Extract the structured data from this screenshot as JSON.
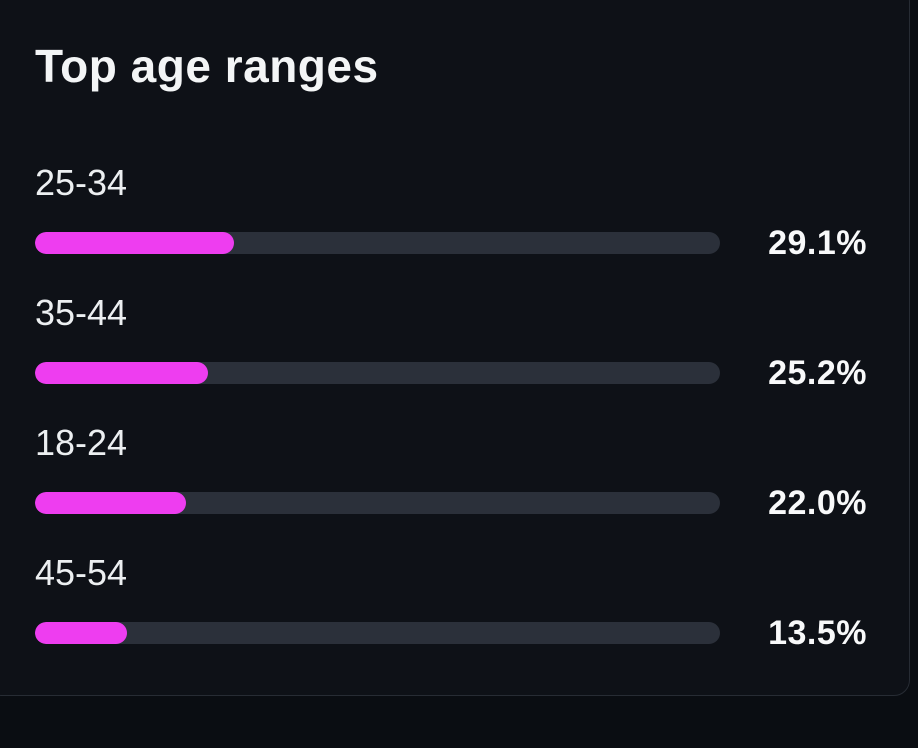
{
  "card": {
    "title": "Top age ranges",
    "rows": [
      {
        "label": "25-34",
        "value": "29.1%",
        "percent": 29.1
      },
      {
        "label": "35-44",
        "value": "25.2%",
        "percent": 25.2
      },
      {
        "label": "18-24",
        "value": "22.0%",
        "percent": 22.0
      },
      {
        "label": "45-54",
        "value": "13.5%",
        "percent": 13.5
      }
    ],
    "colors": {
      "bar_fill": "#ee3df0",
      "bar_track": "#2b303a",
      "card_background": "#0e1117",
      "page_background": "#0a0d12",
      "card_border": "#272c34",
      "text": "#f3f5f6"
    }
  },
  "chart_data": {
    "type": "bar",
    "orientation": "horizontal",
    "title": "Top age ranges",
    "categories": [
      "25-34",
      "35-44",
      "18-24",
      "45-54"
    ],
    "values": [
      29.1,
      25.2,
      22.0,
      13.5
    ],
    "unit": "%",
    "value_labels": [
      "29.1%",
      "25.2%",
      "22.0%",
      "13.5%"
    ],
    "xlim": [
      0,
      100
    ],
    "grid": false,
    "legend": false,
    "bar_color": "#ee3df0",
    "track_color": "#2b303a"
  }
}
